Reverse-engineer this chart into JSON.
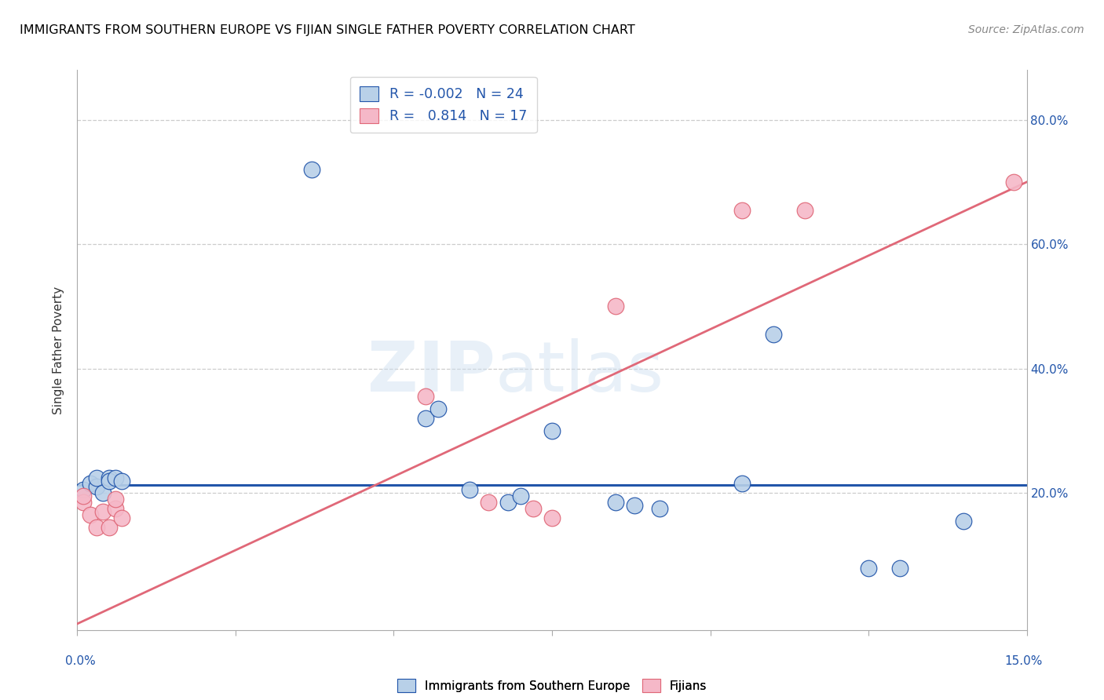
{
  "title": "IMMIGRANTS FROM SOUTHERN EUROPE VS FIJIAN SINGLE FATHER POVERTY CORRELATION CHART",
  "source": "Source: ZipAtlas.com",
  "ylabel": "Single Father Poverty",
  "xlim": [
    0.0,
    0.15
  ],
  "ylim": [
    -0.02,
    0.88
  ],
  "yaxis_ticks": [
    0.0,
    0.2,
    0.4,
    0.6,
    0.8
  ],
  "yaxis_labels": [
    "",
    "20.0%",
    "40.0%",
    "60.0%",
    "80.0%"
  ],
  "blue_color": "#b8d0e8",
  "pink_color": "#f5b8c8",
  "blue_line_color": "#2255aa",
  "pink_line_color": "#e06878",
  "blue_scatter": [
    [
      0.001,
      0.205
    ],
    [
      0.002,
      0.215
    ],
    [
      0.003,
      0.21
    ],
    [
      0.003,
      0.225
    ],
    [
      0.004,
      0.2
    ],
    [
      0.005,
      0.225
    ],
    [
      0.005,
      0.22
    ],
    [
      0.006,
      0.225
    ],
    [
      0.007,
      0.22
    ],
    [
      0.037,
      0.72
    ],
    [
      0.055,
      0.32
    ],
    [
      0.057,
      0.335
    ],
    [
      0.062,
      0.205
    ],
    [
      0.068,
      0.185
    ],
    [
      0.07,
      0.195
    ],
    [
      0.075,
      0.3
    ],
    [
      0.085,
      0.185
    ],
    [
      0.088,
      0.18
    ],
    [
      0.092,
      0.175
    ],
    [
      0.105,
      0.215
    ],
    [
      0.11,
      0.455
    ],
    [
      0.125,
      0.08
    ],
    [
      0.13,
      0.08
    ],
    [
      0.14,
      0.155
    ]
  ],
  "pink_scatter": [
    [
      0.001,
      0.185
    ],
    [
      0.001,
      0.195
    ],
    [
      0.002,
      0.165
    ],
    [
      0.003,
      0.145
    ],
    [
      0.004,
      0.17
    ],
    [
      0.005,
      0.145
    ],
    [
      0.006,
      0.175
    ],
    [
      0.006,
      0.19
    ],
    [
      0.007,
      0.16
    ],
    [
      0.055,
      0.355
    ],
    [
      0.065,
      0.185
    ],
    [
      0.072,
      0.175
    ],
    [
      0.075,
      0.16
    ],
    [
      0.085,
      0.5
    ],
    [
      0.105,
      0.655
    ],
    [
      0.115,
      0.655
    ],
    [
      0.148,
      0.7
    ]
  ],
  "blue_hline_y": 0.213,
  "pink_line_x0": 0.0,
  "pink_line_y0": -0.01,
  "pink_line_x1": 0.15,
  "pink_line_y1": 0.7
}
